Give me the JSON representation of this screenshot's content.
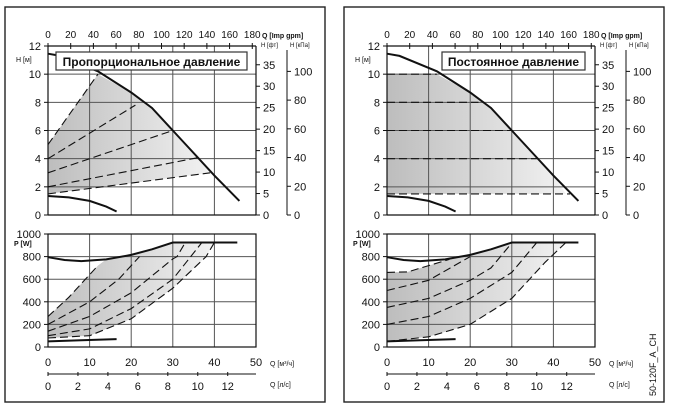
{
  "figure_id": "50-120F_A_CH",
  "chart_data": [
    {
      "type": "line",
      "panel": "left",
      "title": "Пропорциональное давление",
      "head_plot": {
        "ylabel": "H [м]",
        "ylim": [
          0,
          12
        ],
        "yticks": [
          0,
          2,
          4,
          6,
          8,
          10,
          12
        ],
        "top_axis_label": "Q [Imp gpm]",
        "top_ticks": [
          0,
          20,
          40,
          60,
          80,
          100,
          120,
          140,
          160,
          180
        ],
        "ft_label": "H [фт]",
        "ft_ticks": [
          0,
          5,
          10,
          15,
          20,
          25,
          30,
          35
        ],
        "kpa_label": "H [кПа]",
        "kpa_ticks": [
          0,
          20,
          40,
          60,
          80,
          100
        ],
        "max_curve": [
          [
            0,
            11.45
          ],
          [
            3,
            11.3
          ],
          [
            12,
            10.2
          ],
          [
            20,
            8.7
          ],
          [
            25,
            7.6
          ],
          [
            30,
            6.0
          ],
          [
            35,
            4.4
          ],
          [
            40,
            2.8
          ],
          [
            46,
            1.0
          ]
        ],
        "min_curve": [
          [
            0,
            1.35
          ],
          [
            5,
            1.25
          ],
          [
            10,
            1.0
          ],
          [
            14,
            0.6
          ],
          [
            16.5,
            0.25
          ]
        ],
        "control_lines": [
          [
            [
              0,
              5.0
            ],
            [
              12,
              10.0
            ]
          ],
          [
            [
              0,
              4.0
            ],
            [
              21,
              7.8
            ]
          ],
          [
            [
              0,
              3.0
            ],
            [
              30,
              6.0
            ]
          ],
          [
            [
              0,
              2.0
            ],
            [
              36.5,
              4.1
            ]
          ],
          [
            [
              0,
              1.5
            ],
            [
              39,
              3.0
            ]
          ]
        ],
        "shaded_area": [
          [
            0,
            5.0
          ],
          [
            12,
            10.0
          ],
          [
            20,
            8.7
          ],
          [
            25,
            7.6
          ],
          [
            30,
            6.0
          ],
          [
            36.5,
            4.1
          ],
          [
            39,
            3.0
          ],
          [
            0,
            1.5
          ]
        ]
      },
      "power_plot": {
        "ylabel": "P [W]",
        "ylim": [
          0,
          1000
        ],
        "yticks": [
          0,
          200,
          400,
          600,
          800,
          1000
        ],
        "max_curve": [
          [
            0,
            795
          ],
          [
            4,
            770
          ],
          [
            8,
            760
          ],
          [
            14,
            775
          ],
          [
            20,
            815
          ],
          [
            25,
            865
          ],
          [
            30,
            925
          ],
          [
            45.5,
            925
          ]
        ],
        "min_curve": [
          [
            0,
            50
          ],
          [
            8,
            60
          ],
          [
            16.5,
            70
          ]
        ],
        "control_lines": [
          [
            [
              0,
              270
            ],
            [
              5,
              440
            ],
            [
              10,
              640
            ],
            [
              12,
              720
            ]
          ],
          [
            [
              0,
              200
            ],
            [
              10,
              400
            ],
            [
              17,
              600
            ],
            [
              22,
              800
            ]
          ],
          [
            [
              0,
              140
            ],
            [
              10,
              270
            ],
            [
              20,
              480
            ],
            [
              30,
              780
            ],
            [
              31,
              800
            ],
            [
              33,
              925
            ]
          ],
          [
            [
              0,
              100
            ],
            [
              10,
              160
            ],
            [
              20,
              340
            ],
            [
              30,
              600
            ],
            [
              37,
              925
            ]
          ],
          [
            [
              0,
              80
            ],
            [
              10,
              100
            ],
            [
              20,
              250
            ],
            [
              30,
              520
            ],
            [
              38,
              800
            ],
            [
              40,
              925
            ]
          ]
        ],
        "shaded_area": [
          [
            0,
            270
          ],
          [
            5,
            440
          ],
          [
            10,
            640
          ],
          [
            12,
            720
          ],
          [
            14,
            775
          ],
          [
            20,
            815
          ],
          [
            25,
            865
          ],
          [
            30,
            925
          ],
          [
            37,
            925
          ],
          [
            40,
            925
          ],
          [
            38,
            800
          ],
          [
            30,
            520
          ],
          [
            20,
            250
          ],
          [
            10,
            100
          ],
          [
            0,
            80
          ]
        ]
      },
      "xlabel": "Q [м³/ч]",
      "xlim": [
        0,
        50
      ],
      "xticks": [
        0,
        10,
        20,
        30,
        40,
        50
      ],
      "x2label": "Q [л/с]",
      "x2ticks": [
        0,
        2,
        4,
        6,
        8,
        10,
        12
      ]
    },
    {
      "type": "line",
      "panel": "right",
      "title": "Постоянное давление",
      "head_plot": {
        "ylabel": "H [м]",
        "ylim": [
          0,
          12
        ],
        "yticks": [
          0,
          2,
          4,
          6,
          8,
          10,
          12
        ],
        "top_axis_label": "Q [Imp gpm]",
        "top_ticks": [
          0,
          20,
          40,
          60,
          80,
          100,
          120,
          140,
          160,
          180
        ],
        "ft_label": "H [фт]",
        "ft_ticks": [
          0,
          5,
          10,
          15,
          20,
          25,
          30,
          35
        ],
        "kpa_label": "H [кПа]",
        "kpa_ticks": [
          0,
          20,
          40,
          60,
          80,
          100
        ],
        "max_curve": [
          [
            0,
            11.45
          ],
          [
            3,
            11.3
          ],
          [
            12,
            10.2
          ],
          [
            20,
            8.7
          ],
          [
            25,
            7.6
          ],
          [
            30,
            6.0
          ],
          [
            35,
            4.4
          ],
          [
            40,
            2.8
          ],
          [
            46,
            1.0
          ]
        ],
        "min_curve": [
          [
            0,
            1.35
          ],
          [
            5,
            1.25
          ],
          [
            10,
            1.0
          ],
          [
            14,
            0.6
          ],
          [
            16.5,
            0.25
          ]
        ],
        "control_lines": [
          [
            [
              0,
              10.0
            ],
            [
              12,
              10.0
            ]
          ],
          [
            [
              0,
              8.0
            ],
            [
              22,
              8.0
            ]
          ],
          [
            [
              0,
              6.0
            ],
            [
              30,
              6.0
            ]
          ],
          [
            [
              0,
              4.0
            ],
            [
              36,
              4.0
            ]
          ],
          [
            [
              0,
              1.5
            ],
            [
              44,
              1.5
            ]
          ]
        ],
        "shaded_area": [
          [
            0,
            10.0
          ],
          [
            12,
            10.0
          ],
          [
            20,
            8.7
          ],
          [
            25,
            7.6
          ],
          [
            30,
            6.0
          ],
          [
            35,
            4.4
          ],
          [
            40,
            2.8
          ],
          [
            43,
            1.5
          ],
          [
            0,
            1.5
          ]
        ]
      },
      "power_plot": {
        "ylabel": "P [W]",
        "ylim": [
          0,
          1000
        ],
        "yticks": [
          0,
          200,
          400,
          600,
          800,
          1000
        ],
        "max_curve": [
          [
            0,
            795
          ],
          [
            4,
            770
          ],
          [
            8,
            760
          ],
          [
            14,
            775
          ],
          [
            20,
            815
          ],
          [
            25,
            865
          ],
          [
            30,
            925
          ],
          [
            46,
            925
          ]
        ],
        "min_curve": [
          [
            0,
            50
          ],
          [
            8,
            60
          ],
          [
            16.5,
            70
          ]
        ],
        "control_lines": [
          [
            [
              0,
              660
            ],
            [
              5,
              665
            ],
            [
              10,
              720
            ],
            [
              15,
              775
            ]
          ],
          [
            [
              0,
              500
            ],
            [
              10,
              590
            ],
            [
              20,
              800
            ]
          ],
          [
            [
              0,
              350
            ],
            [
              10,
              430
            ],
            [
              20,
              590
            ],
            [
              25,
              700
            ],
            [
              30,
              920
            ]
          ],
          [
            [
              0,
              200
            ],
            [
              10,
              270
            ],
            [
              20,
              430
            ],
            [
              30,
              660
            ],
            [
              36,
              925
            ]
          ],
          [
            [
              0,
              50
            ],
            [
              10,
              90
            ],
            [
              20,
              200
            ],
            [
              30,
              430
            ],
            [
              38,
              750
            ],
            [
              43,
              925
            ]
          ]
        ],
        "shaded_area": [
          [
            0,
            660
          ],
          [
            5,
            665
          ],
          [
            10,
            720
          ],
          [
            15,
            775
          ],
          [
            20,
            815
          ],
          [
            25,
            865
          ],
          [
            30,
            925
          ],
          [
            43,
            925
          ],
          [
            38,
            750
          ],
          [
            30,
            430
          ],
          [
            20,
            200
          ],
          [
            10,
            90
          ],
          [
            0,
            50
          ]
        ]
      },
      "xlabel": "Q [м³/ч]",
      "xlim": [
        0,
        50
      ],
      "xticks": [
        0,
        10,
        20,
        30,
        40,
        50
      ],
      "x2label": "Q [л/с]",
      "x2ticks": [
        0,
        2,
        4,
        6,
        8,
        10,
        12
      ]
    }
  ]
}
